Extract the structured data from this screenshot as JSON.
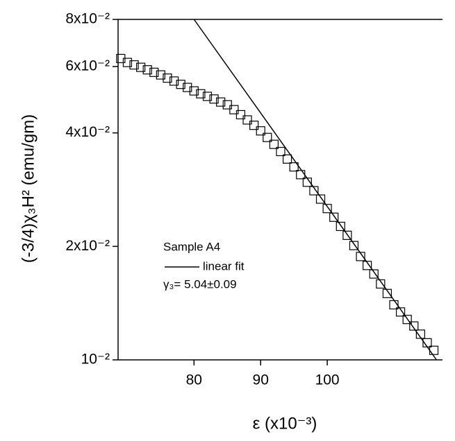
{
  "chart_data": {
    "type": "scatter",
    "x_label": "ε (x10⁻³)",
    "y_label": "(-3/4)χ₃H² (emu/gm)",
    "annotations": [
      "Sample A4",
      "γ₃= 5.04±0.09"
    ],
    "xlim": [
      68.6,
      117.3
    ],
    "xticks": [
      80,
      90,
      100
    ],
    "ylim": [
      0.01,
      0.08
    ],
    "y_log": true,
    "yticks": [
      {
        "value": 0.01,
        "label": "10⁻²"
      },
      {
        "value": 0.02,
        "label": "2x10⁻²"
      },
      {
        "value": 0.04,
        "label": "4x10⁻²"
      },
      {
        "value": 0.06,
        "label": "6x10⁻²"
      },
      {
        "value": 0.08,
        "label": "8x10⁻²"
      }
    ],
    "series": [
      {
        "color": "#000000",
        "marker": "square",
        "x": [
          69,
          70,
          71,
          72,
          73,
          74,
          75,
          76,
          77,
          78,
          79,
          80,
          81,
          82,
          83,
          84,
          85,
          86,
          87,
          88,
          89,
          90,
          91,
          92,
          93,
          94,
          95,
          96,
          97,
          98,
          99,
          100,
          101,
          102,
          103,
          104,
          105,
          106,
          107,
          108,
          109,
          110,
          111,
          112,
          113,
          114,
          115,
          116
        ],
        "values": [
          0.063,
          0.0615,
          0.0606,
          0.0597,
          0.0588,
          0.0579,
          0.057,
          0.0559,
          0.0549,
          0.0538,
          0.0528,
          0.0517,
          0.0508,
          0.05,
          0.0492,
          0.0483,
          0.0475,
          0.0461,
          0.0447,
          0.0433,
          0.0419,
          0.0405,
          0.0389,
          0.0373,
          0.0357,
          0.0341,
          0.0325,
          0.031,
          0.0296,
          0.0281,
          0.0267,
          0.0252,
          0.0239,
          0.0226,
          0.0214,
          0.0201,
          0.0188,
          0.0178,
          0.0169,
          0.0159,
          0.015,
          0.014,
          0.0134,
          0.0128,
          0.0123,
          0.0117,
          0.0111,
          0.0106
        ]
      },
      {
        "name": "linear fit",
        "color": "#000000",
        "marker": "line",
        "x": [
          80,
          116.4
        ],
        "values": [
          0.08,
          0.01
        ]
      }
    ]
  }
}
